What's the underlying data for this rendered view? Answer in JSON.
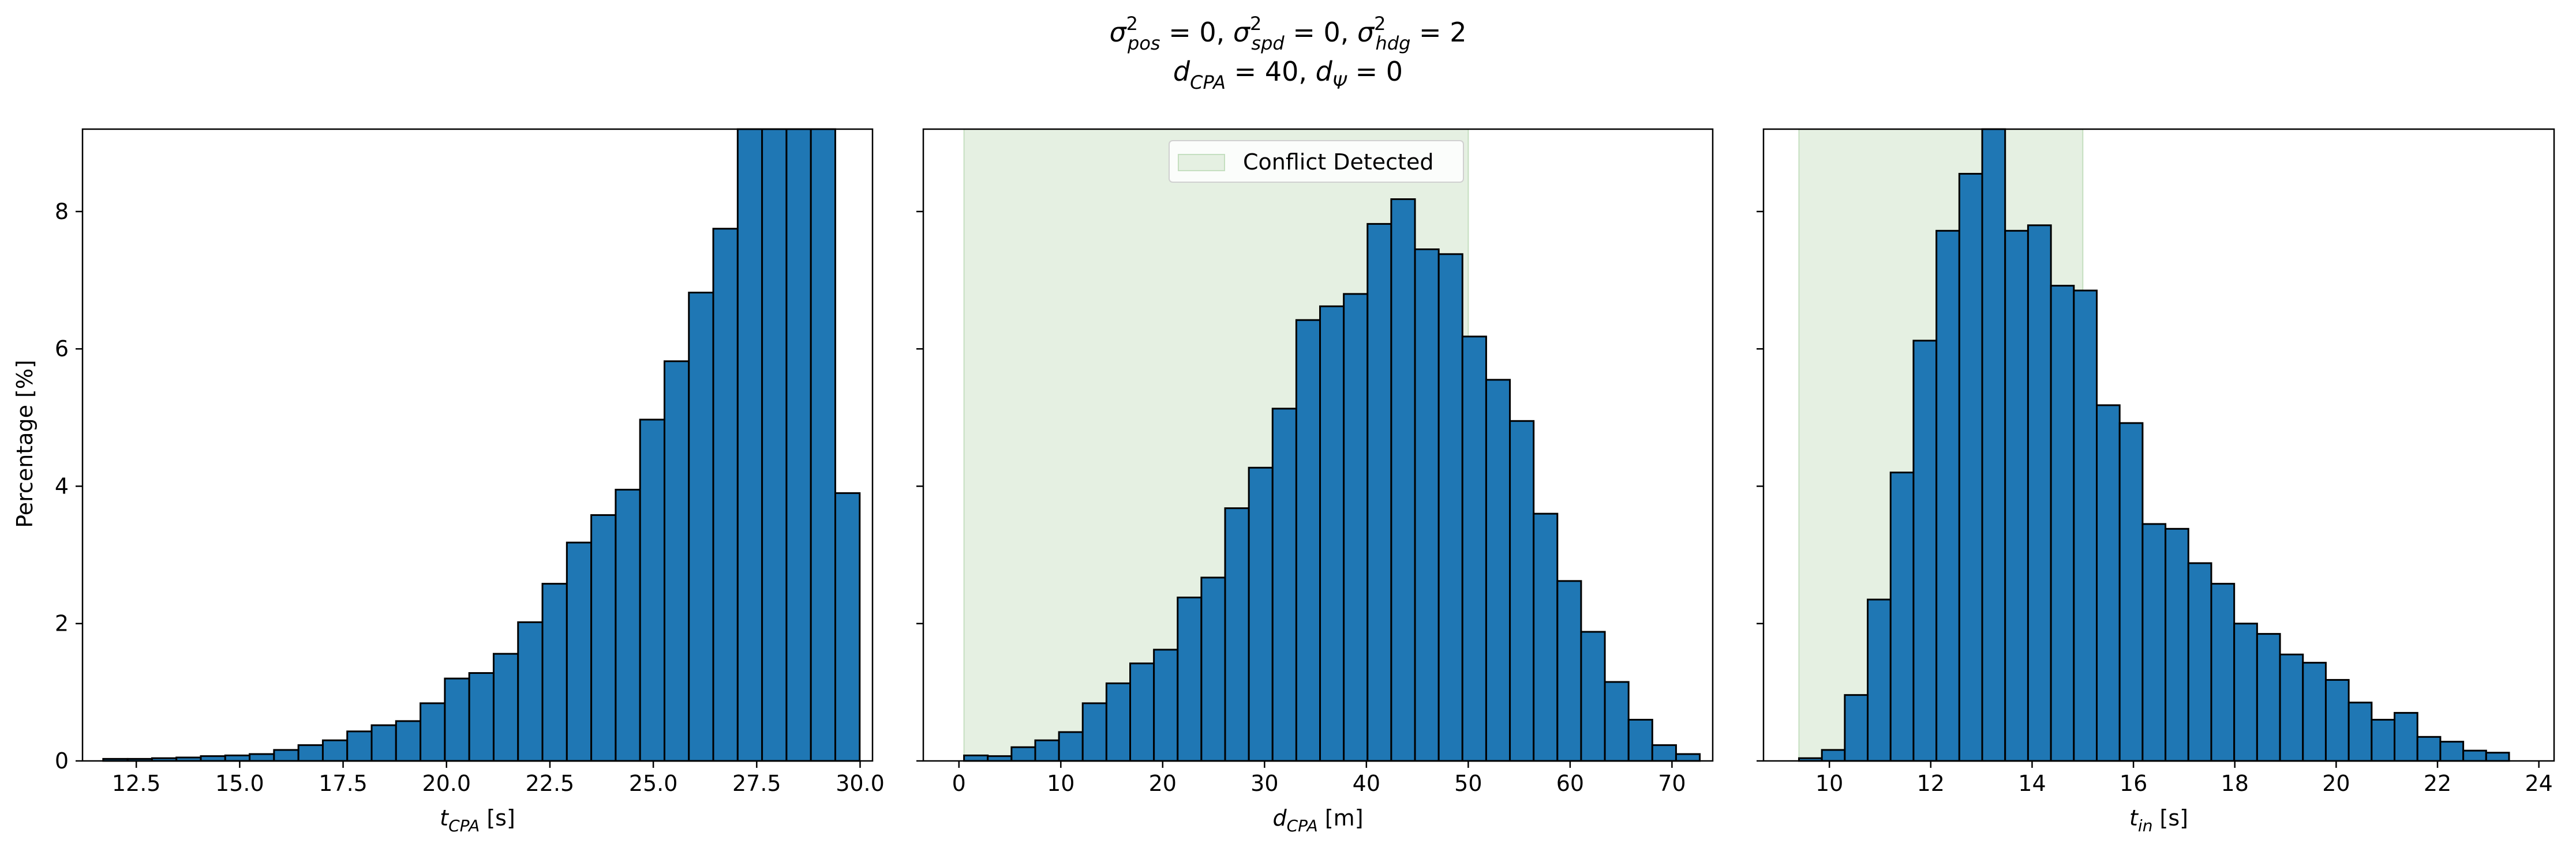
{
  "figure": {
    "title_parts": [
      [
        "σ",
        "2",
        "pos",
        " = 0, "
      ],
      [
        "σ",
        "2",
        "spd",
        " = 0, "
      ],
      [
        "σ",
        "2",
        "hdg",
        " = 2"
      ]
    ],
    "title_line2": [
      [
        "d",
        "",
        "CPA",
        " = 40, "
      ],
      [
        "d",
        "",
        "Ψ",
        " = 0"
      ]
    ],
    "ylabel": "Percentage [%]"
  },
  "chart_data": [
    {
      "type": "bar",
      "xlabel_main": "t",
      "xlabel_sub": "CPA",
      "xlabel_unit": " [s]",
      "xlim": [
        11.2,
        30.3
      ],
      "ylim": [
        0,
        9.2
      ],
      "xticks": [
        "12.5",
        "15.0",
        "17.5",
        "20.0",
        "22.5",
        "25.0",
        "27.5",
        "30.0"
      ],
      "xtick_values": [
        12.5,
        15.0,
        17.5,
        20.0,
        22.5,
        25.0,
        27.5,
        30.0
      ],
      "yticks": [
        "0",
        "2",
        "4",
        "6",
        "8"
      ],
      "ytick_values": [
        0,
        2,
        4,
        6,
        8
      ],
      "bin_start": 11.7,
      "bin_width": 0.59,
      "values": [
        0.03,
        0.03,
        0.04,
        0.05,
        0.07,
        0.08,
        0.1,
        0.16,
        0.23,
        0.3,
        0.43,
        0.52,
        0.58,
        0.84,
        1.2,
        1.28,
        1.56,
        2.02,
        2.58,
        3.18,
        3.58,
        3.95,
        4.97,
        5.82,
        6.82,
        7.75,
        9.2,
        9.2,
        9.2,
        9.2,
        3.9
      ],
      "shade": null,
      "legend": null,
      "bar_color": "#1f77b4"
    },
    {
      "type": "bar",
      "xlabel_main": "d",
      "xlabel_sub": "CPA",
      "xlabel_unit": " [m]",
      "xlim": [
        -3.5,
        74.0
      ],
      "ylim": [
        0,
        9.2
      ],
      "xticks": [
        "0",
        "10",
        "20",
        "30",
        "40",
        "50",
        "60",
        "70"
      ],
      "xtick_values": [
        0,
        10,
        20,
        30,
        40,
        50,
        60,
        70
      ],
      "yticks": [],
      "ytick_values": [
        0,
        2,
        4,
        6,
        8
      ],
      "bin_start": 0.5,
      "bin_width": 2.33,
      "values": [
        0.08,
        0.07,
        0.2,
        0.3,
        0.42,
        0.84,
        1.13,
        1.42,
        1.62,
        2.38,
        2.67,
        3.68,
        4.27,
        5.13,
        6.42,
        6.62,
        6.8,
        7.82,
        8.18,
        7.45,
        7.38,
        6.18,
        5.55,
        4.95,
        3.6,
        2.62,
        1.88,
        1.15,
        0.6,
        0.23,
        0.1
      ],
      "shade": [
        0.5,
        50.0
      ],
      "legend": "Conflict Detected",
      "bar_color": "#1f77b4",
      "shade_color": "#e5f0e2"
    },
    {
      "type": "bar",
      "xlabel_main": "t",
      "xlabel_sub": "in",
      "xlabel_unit": " [s]",
      "xlim": [
        8.7,
        24.3
      ],
      "ylim": [
        0,
        9.2
      ],
      "xticks": [
        "10",
        "12",
        "14",
        "16",
        "18",
        "20",
        "22",
        "24"
      ],
      "xtick_values": [
        10,
        12,
        14,
        16,
        18,
        20,
        22,
        24
      ],
      "yticks": [],
      "ytick_values": [
        0,
        2,
        4,
        6,
        8
      ],
      "bin_start": 9.4,
      "bin_width": 0.452,
      "values": [
        0.04,
        0.16,
        0.96,
        2.35,
        4.2,
        6.12,
        7.72,
        8.55,
        9.2,
        7.72,
        7.8,
        6.92,
        6.85,
        5.18,
        4.92,
        3.45,
        3.38,
        2.88,
        2.58,
        2.0,
        1.85,
        1.55,
        1.43,
        1.18,
        0.85,
        0.6,
        0.7,
        0.35,
        0.28,
        0.15,
        0.12
      ],
      "shade": [
        9.4,
        15.0
      ],
      "legend": null,
      "bar_color": "#1f77b4",
      "shade_color": "#e5f0e2"
    }
  ]
}
